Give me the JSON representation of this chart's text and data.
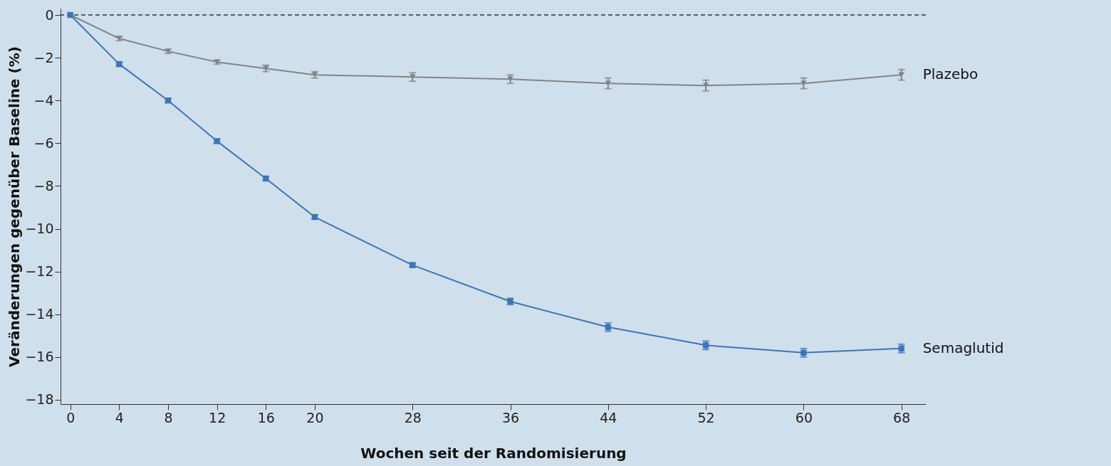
{
  "chart_data": {
    "type": "line",
    "xlabel": "Wochen seit der Randomisierung",
    "ylabel": "Veränderungen gegenüber Baseline (%)",
    "x": [
      0,
      4,
      8,
      12,
      16,
      20,
      28,
      36,
      44,
      52,
      60,
      68
    ],
    "series": [
      {
        "name": "Plazebo",
        "color": "#7f8588",
        "marker": "triangle",
        "values": [
          0,
          -1.1,
          -1.7,
          -2.2,
          -2.5,
          -2.8,
          -2.9,
          -3.0,
          -3.2,
          -3.3,
          -3.2,
          -2.8
        ],
        "errors": [
          null,
          0.1,
          0.1,
          0.1,
          0.15,
          0.15,
          0.2,
          0.2,
          0.25,
          0.25,
          0.25,
          0.25
        ]
      },
      {
        "name": "Semaglutid",
        "color": "#3f74b8",
        "marker": "square",
        "values": [
          0,
          -2.3,
          -4.0,
          -5.9,
          -7.65,
          -9.45,
          -11.7,
          -13.4,
          -14.6,
          -15.45,
          -15.8,
          -15.6
        ],
        "errors": [
          null,
          0.1,
          0.1,
          0.1,
          0.1,
          0.1,
          0.1,
          0.15,
          0.2,
          0.2,
          0.2,
          0.2
        ]
      }
    ],
    "xlim": [
      -0.8,
      70
    ],
    "ylim": [
      -18.2,
      0.3
    ],
    "xticks": [
      0,
      4,
      8,
      12,
      16,
      20,
      28,
      36,
      44,
      52,
      60,
      68
    ],
    "yticks": [
      0,
      -2,
      -4,
      -6,
      -8,
      -10,
      -12,
      -14,
      -16,
      -18
    ],
    "ref_lines": [
      {
        "axis": "y",
        "value": 0,
        "line_style": "dashed",
        "color": "#333333"
      }
    ],
    "grid": false,
    "line_style": "solid"
  }
}
